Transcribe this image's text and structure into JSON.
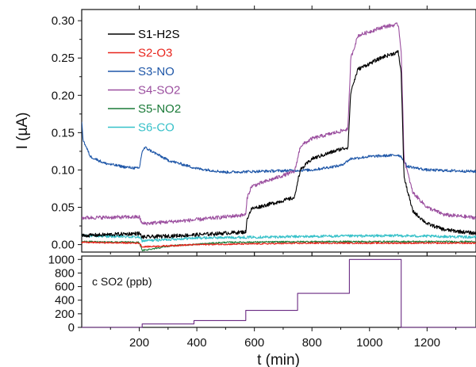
{
  "chart_data": [
    {
      "type": "line",
      "title": "",
      "xlabel": "",
      "ylabel": "I (µA)",
      "xlim": [
        0,
        1370
      ],
      "ylim": [
        -0.01,
        0.315
      ],
      "yticks": [
        "0.00",
        "0.05",
        "0.10",
        "0.15",
        "0.20",
        "0.25",
        "0.30"
      ],
      "grid": false,
      "legend": "top-left",
      "series": [
        {
          "name": "S1-H2S",
          "color": "#000000",
          "x": [
            0,
            200,
            210,
            390,
            570,
            575,
            590,
            740,
            750,
            760,
            800,
            900,
            925,
            935,
            960,
            1050,
            1100,
            1110,
            1120,
            1150,
            1200,
            1260,
            1370
          ],
          "y": [
            0.012,
            0.015,
            0.01,
            0.013,
            0.017,
            0.035,
            0.048,
            0.063,
            0.085,
            0.1,
            0.115,
            0.128,
            0.13,
            0.205,
            0.235,
            0.252,
            0.258,
            0.23,
            0.09,
            0.045,
            0.028,
            0.02,
            0.015
          ],
          "noise": 0.0025
        },
        {
          "name": "S2-O3",
          "color": "#e8241c",
          "x": [
            0,
            200,
            210,
            400,
            800,
            1370
          ],
          "y": [
            0.003,
            0.002,
            -0.003,
            0.0,
            0.002,
            0.002
          ],
          "noise": 0.001
        },
        {
          "name": "S3-NO",
          "color": "#1f57a8",
          "x": [
            0,
            5,
            30,
            80,
            150,
            200,
            210,
            220,
            300,
            400,
            500,
            600,
            700,
            800,
            900,
            935,
            1000,
            1100,
            1110,
            1130,
            1200,
            1370
          ],
          "y": [
            0.165,
            0.14,
            0.118,
            0.109,
            0.104,
            0.102,
            0.125,
            0.13,
            0.113,
            0.102,
            0.097,
            0.098,
            0.099,
            0.1,
            0.106,
            0.115,
            0.118,
            0.12,
            0.118,
            0.105,
            0.1,
            0.098
          ],
          "noise": 0.0018
        },
        {
          "name": "S4-SO2",
          "color": "#9b4f9f",
          "x": [
            0,
            200,
            210,
            390,
            570,
            575,
            590,
            740,
            750,
            760,
            800,
            900,
            925,
            935,
            960,
            1050,
            1100,
            1110,
            1120,
            1150,
            1200,
            1260,
            1370
          ],
          "y": [
            0.036,
            0.037,
            0.028,
            0.033,
            0.04,
            0.063,
            0.078,
            0.098,
            0.115,
            0.132,
            0.142,
            0.152,
            0.155,
            0.25,
            0.28,
            0.292,
            0.295,
            0.26,
            0.115,
            0.07,
            0.05,
            0.04,
            0.036
          ],
          "noise": 0.0025
        },
        {
          "name": "S5-NO2",
          "color": "#1a7a38",
          "x": [
            0,
            200,
            210,
            300,
            500,
            800,
            1370
          ],
          "y": [
            0.004,
            0.003,
            -0.008,
            -0.002,
            0.003,
            0.004,
            0.004
          ],
          "noise": 0.001
        },
        {
          "name": "S6-CO",
          "color": "#37c1c9",
          "x": [
            0,
            200,
            210,
            400,
            800,
            1100,
            1370
          ],
          "y": [
            0.012,
            0.01,
            0.005,
            0.009,
            0.011,
            0.012,
            0.01
          ],
          "noise": 0.0018
        }
      ]
    },
    {
      "type": "line",
      "title": "",
      "xlabel": "t (min)",
      "ylabel": "",
      "annotation": "c SO2 (ppb)",
      "xlim": [
        0,
        1370
      ],
      "ylim": [
        0,
        1050
      ],
      "xticks": [
        "200",
        "400",
        "600",
        "800",
        "1000",
        "1200"
      ],
      "yticks": [
        "0",
        "200",
        "400",
        "600",
        "800",
        "1000"
      ],
      "grid": false,
      "series": [
        {
          "color": "#6a2a82",
          "x": [
            0,
            210,
            210,
            390,
            390,
            570,
            570,
            750,
            750,
            930,
            930,
            1110,
            1110,
            1370
          ],
          "y": [
            0,
            0,
            50,
            50,
            100,
            100,
            250,
            250,
            500,
            500,
            1000,
            1000,
            0,
            0
          ]
        }
      ]
    }
  ]
}
